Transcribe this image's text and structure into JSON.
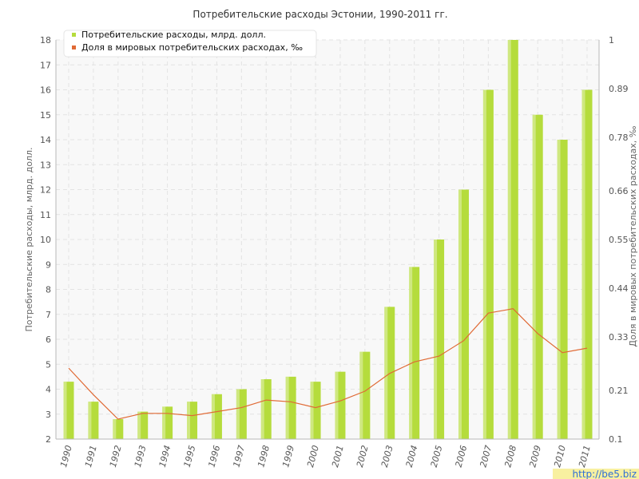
{
  "chart_data": {
    "type": "bar",
    "title": "Потребительские расходы Эстонии, 1990-2011 гг.",
    "xlabel": "",
    "ylabel": "Потребительские расходы, млрд. долл.",
    "y2label": "Доля в мировых потребительских расходах, ‰",
    "ylim": [
      2,
      18
    ],
    "y2lim": [
      0.1,
      1
    ],
    "y_ticks": [
      "2",
      "3",
      "4",
      "5",
      "6",
      "7",
      "8",
      "9",
      "10",
      "11",
      "12",
      "13",
      "14",
      "15",
      "16",
      "17",
      "18"
    ],
    "y2_ticks": [
      "0.1",
      "0.21",
      "0.33",
      "0.44",
      "0.55",
      "0.66",
      "0.78",
      "0.89",
      "1"
    ],
    "grid": true,
    "legend_position": "top-left",
    "categories": [
      "1990",
      "1991",
      "1992",
      "1993",
      "1994",
      "1995",
      "1996",
      "1997",
      "1998",
      "1999",
      "2000",
      "2001",
      "2002",
      "2003",
      "2004",
      "2005",
      "2006",
      "2007",
      "2008",
      "2009",
      "2010",
      "2011"
    ],
    "series": [
      {
        "name": "Потребительские расходы, млрд. долл.",
        "type": "bar",
        "axis": "left",
        "color": "#b5dc3c",
        "values": [
          4.3,
          3.5,
          2.8,
          3.1,
          3.3,
          3.5,
          3.8,
          4.0,
          4.4,
          4.5,
          4.3,
          4.7,
          5.5,
          7.3,
          8.9,
          10.0,
          12.0,
          16.0,
          18.0,
          15.0,
          14.0,
          16.0
        ]
      },
      {
        "name": "Доля в мировых потребительских расходах, ‰",
        "type": "line",
        "axis": "right",
        "color": "#e06a35",
        "values": [
          0.26,
          0.2,
          0.145,
          0.158,
          0.158,
          0.153,
          0.162,
          0.171,
          0.188,
          0.184,
          0.171,
          0.186,
          0.208,
          0.248,
          0.274,
          0.287,
          0.322,
          0.384,
          0.394,
          0.338,
          0.295,
          0.305
        ]
      }
    ]
  },
  "watermark": "http://be5.biz"
}
